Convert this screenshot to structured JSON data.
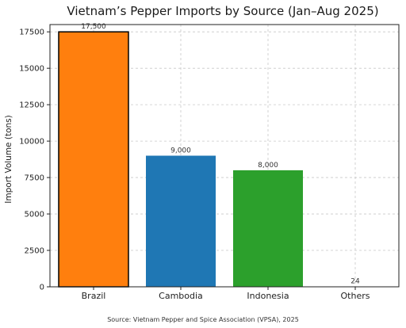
{
  "chart_data": {
    "type": "bar",
    "title": "Vietnam’s Pepper Imports by Source (Jan–Aug 2025)",
    "xlabel": "",
    "ylabel": "Import Volume (tons)",
    "categories": [
      "Brazil",
      "Cambodia",
      "Indonesia",
      "Others"
    ],
    "values": [
      17500,
      9000,
      8000,
      24
    ],
    "data_labels": [
      "17,500",
      "9,000",
      "8,000",
      "24"
    ],
    "colors": [
      "#ff7f0e",
      "#1f77b4",
      "#2ca02c",
      "#d62728"
    ],
    "highlight_edge": "#000000",
    "ylim": [
      0,
      18000
    ],
    "yticks": [
      0,
      2500,
      5000,
      7500,
      10000,
      12500,
      15000,
      17500
    ],
    "ytick_labels": [
      "0",
      "2500",
      "5000",
      "7500",
      "10000",
      "12500",
      "15000",
      "17500"
    ],
    "grid": true,
    "legend": "none",
    "source": "Source: Vietnam Pepper and Spice Association (VPSA), 2025"
  }
}
